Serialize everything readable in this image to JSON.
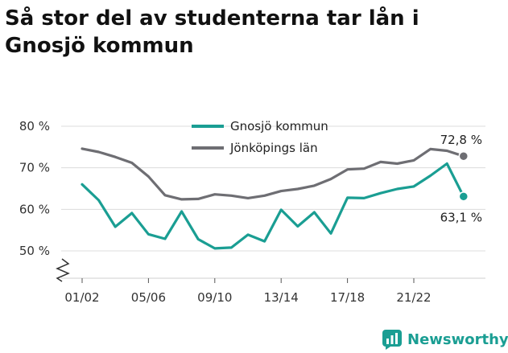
{
  "title_lines": [
    "Så stor del av studenterna tar lån i",
    "Gnosjö kommun"
  ],
  "brand": {
    "name": "Newsworthy",
    "icon": "newsworthy-logo-icon",
    "color": "#1a9e93"
  },
  "chart_data": {
    "type": "line",
    "title": "Så stor del av studenterna tar lån i Gnosjö kommun",
    "xlabel": "",
    "ylabel": "",
    "x_tick_labels": [
      "01/02",
      "05/06",
      "09/10",
      "13/14",
      "17/18",
      "21/22"
    ],
    "y_tick_labels": [
      "80 %",
      "70 %",
      "60 %",
      "50 %"
    ],
    "y_ticks": [
      80,
      70,
      60,
      50
    ],
    "ylim": [
      46,
      81
    ],
    "y_axis_break": true,
    "grid": "horizontal",
    "legend_placement": "top-center",
    "categories": [
      "01/02",
      "02/03",
      "03/04",
      "04/05",
      "05/06",
      "06/07",
      "07/08",
      "08/09",
      "09/10",
      "10/11",
      "11/12",
      "12/13",
      "13/14",
      "14/15",
      "15/16",
      "16/17",
      "17/18",
      "18/19",
      "19/20",
      "20/21",
      "21/22",
      "22/23",
      "23/24",
      "24/25"
    ],
    "series": [
      {
        "name": "Gnosjö kommun",
        "color": "#1a9e93",
        "values": [
          66.0,
          62.2,
          55.8,
          59.1,
          54.0,
          52.9,
          59.5,
          52.8,
          50.6,
          50.8,
          53.9,
          52.3,
          59.9,
          55.9,
          59.3,
          54.2,
          62.8,
          62.7,
          63.9,
          64.9,
          65.5,
          68.1,
          71.0,
          63.1
        ],
        "end_label": "63,1 %"
      },
      {
        "name": "Jönköpings län",
        "color": "#6e6e73",
        "values": [
          74.6,
          73.8,
          72.6,
          71.2,
          67.9,
          63.4,
          62.4,
          62.5,
          63.6,
          63.3,
          62.7,
          63.3,
          64.4,
          64.9,
          65.7,
          67.3,
          69.6,
          69.8,
          71.4,
          71.0,
          71.8,
          74.5,
          74.1,
          72.8
        ],
        "end_label": "72,8 %"
      }
    ]
  }
}
